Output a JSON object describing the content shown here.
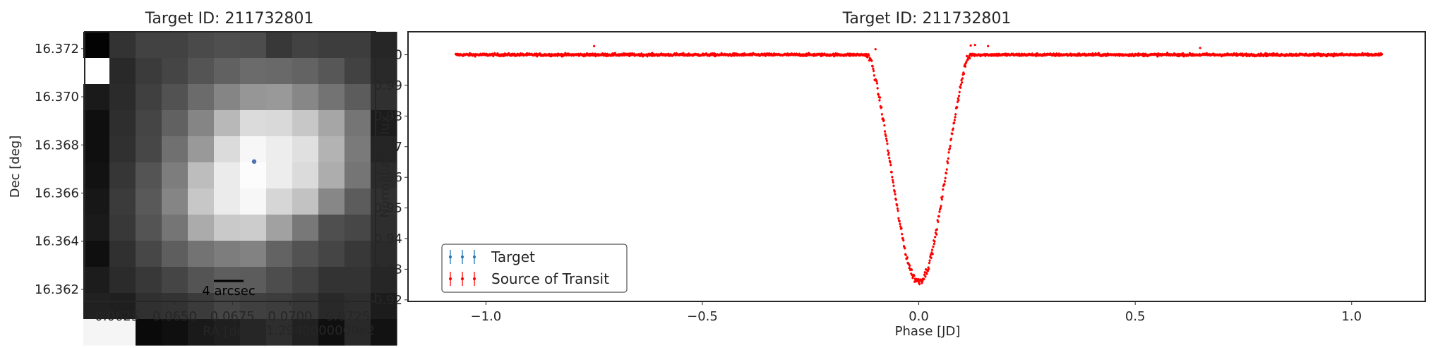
{
  "chart_data": [
    {
      "type": "heatmap",
      "title": "Target ID: 211732801",
      "xlabel": "RA [deg]",
      "ylabel": "Dec [deg]",
      "x_offset_label": "+1.2940000000e2",
      "x_ticks": [
        0.0625,
        0.065,
        0.0675,
        0.07,
        0.0725
      ],
      "x_tick_labels": [
        "0.0625",
        "0.0650",
        "0.0675",
        "0.0700",
        "0.0725"
      ],
      "y_ticks": [
        16.362,
        16.364,
        16.366,
        16.368,
        16.37,
        16.372
      ],
      "y_tick_labels": [
        "16.362",
        "16.364",
        "16.366",
        "16.368",
        "16.370",
        "16.372"
      ],
      "xlim": [
        0.0611,
        0.0737
      ],
      "ylim": [
        16.3615,
        16.3727
      ],
      "colormap": "gray",
      "pixels": [
        [
          0.01,
          0.2,
          0.26,
          0.26,
          0.29,
          0.31,
          0.3,
          0.22,
          0.26,
          0.24,
          0.24,
          0.15
        ],
        [
          1.0,
          0.16,
          0.23,
          0.27,
          0.33,
          0.38,
          0.42,
          0.41,
          0.39,
          0.34,
          0.26,
          0.16
        ],
        [
          0.1,
          0.17,
          0.25,
          0.32,
          0.42,
          0.52,
          0.59,
          0.6,
          0.53,
          0.45,
          0.36,
          0.19
        ],
        [
          0.06,
          0.18,
          0.27,
          0.38,
          0.52,
          0.72,
          0.86,
          0.85,
          0.78,
          0.65,
          0.46,
          0.11
        ],
        [
          0.06,
          0.19,
          0.28,
          0.44,
          0.6,
          0.86,
          0.97,
          0.93,
          0.88,
          0.7,
          0.48,
          0.14
        ],
        [
          0.07,
          0.21,
          0.33,
          0.49,
          0.74,
          0.92,
          0.99,
          0.93,
          0.86,
          0.68,
          0.46,
          0.17
        ],
        [
          0.09,
          0.23,
          0.35,
          0.52,
          0.78,
          0.92,
          0.97,
          0.84,
          0.76,
          0.53,
          0.36,
          0.19
        ],
        [
          0.1,
          0.22,
          0.33,
          0.46,
          0.67,
          0.79,
          0.8,
          0.63,
          0.47,
          0.31,
          0.28,
          0.18
        ],
        [
          0.06,
          0.19,
          0.28,
          0.37,
          0.45,
          0.49,
          0.51,
          0.39,
          0.32,
          0.27,
          0.22,
          0.17
        ],
        [
          0.11,
          0.17,
          0.22,
          0.27,
          0.33,
          0.37,
          0.36,
          0.3,
          0.26,
          0.2,
          0.2,
          0.15
        ],
        [
          0.13,
          0.12,
          0.19,
          0.2,
          0.23,
          0.27,
          0.25,
          0.24,
          0.21,
          0.16,
          0.18,
          0.11
        ],
        [
          0.96,
          0.96,
          0.04,
          0.06,
          0.1,
          0.12,
          0.15,
          0.18,
          0.13,
          0.06,
          0.16,
          0.07
        ]
      ],
      "target_marker": {
        "ra": 0.06844,
        "dec": 16.36731,
        "color": "#4c72b0"
      },
      "scalebar": {
        "label": "4 arcsec"
      }
    },
    {
      "type": "scatter",
      "title": "Target ID: 211732801",
      "xlabel": "Phase [JD]",
      "ylabel": "Normalized Flux",
      "x_ticks": [
        -1.0,
        -0.5,
        0.0,
        0.5,
        1.0
      ],
      "x_tick_labels": [
        "−1.0",
        "−0.5",
        "0.0",
        "0.5",
        "1.0"
      ],
      "y_ticks": [
        0.92,
        0.93,
        0.94,
        0.95,
        0.96,
        0.97,
        0.98,
        0.99,
        1.0
      ],
      "y_tick_labels": [
        "0.92",
        "0.93",
        "0.94",
        "0.95",
        "0.96",
        "0.97",
        "0.98",
        "0.99",
        "1.00"
      ],
      "xlim": [
        -1.18,
        1.17
      ],
      "ylim": [
        0.9195,
        1.0075
      ],
      "legend_placement": "lower-left",
      "legend": [
        "Target",
        "Source of Transit"
      ],
      "series": [
        {
          "name": "Target",
          "color": "#1f77b4",
          "model": "same as Source of Transit (hidden beneath)"
        },
        {
          "name": "Source of Transit",
          "color": "#ff0000",
          "phase_range": [
            -1.07,
            1.07
          ],
          "baseline_flux": 1.0,
          "baseline_scatter": 0.0004,
          "transit_curve": {
            "phase": [
              -0.12,
              -0.11,
              -0.1,
              -0.09,
              -0.08,
              -0.07,
              -0.06,
              -0.05,
              -0.04,
              -0.03,
              -0.02,
              -0.01,
              0.0,
              0.01,
              0.02,
              0.03,
              0.04,
              0.05,
              0.06,
              0.07,
              0.08,
              0.09,
              0.1,
              0.11,
              0.12
            ],
            "flux": [
              1.0,
              0.998,
              0.992,
              0.985,
              0.977,
              0.968,
              0.959,
              0.95,
              0.942,
              0.935,
              0.93,
              0.927,
              0.926,
              0.927,
              0.93,
              0.935,
              0.942,
              0.95,
              0.959,
              0.968,
              0.977,
              0.985,
              0.992,
              0.998,
              1.0
            ]
          }
        }
      ]
    }
  ]
}
